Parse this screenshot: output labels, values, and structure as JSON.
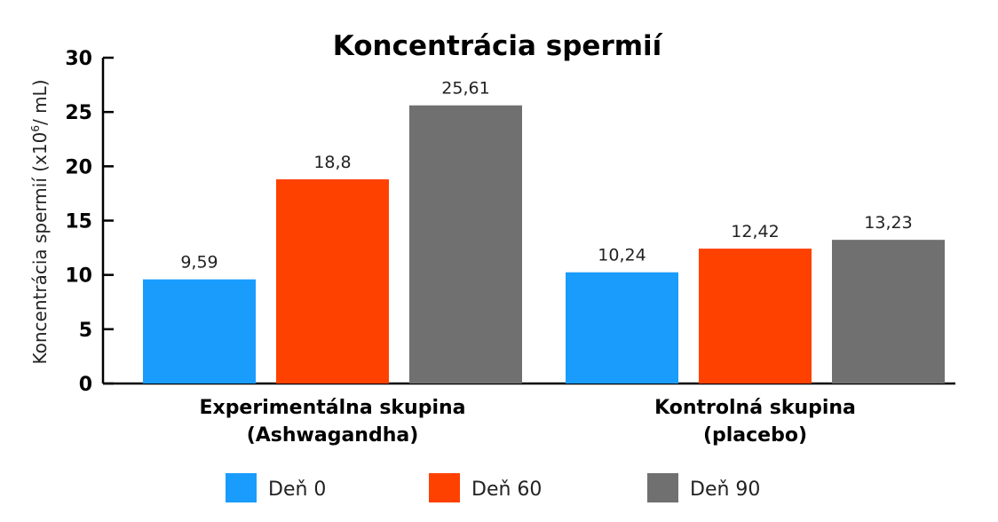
{
  "chart_data": {
    "type": "bar",
    "title": "Koncentrácia spermií",
    "ylabel_main": "Koncentrácia spermií (x10",
    "ylabel_sup": "6",
    "ylabel_end": "/ mL)",
    "xlabel": "",
    "ylim": [
      0,
      30
    ],
    "yticks": [
      "0",
      "5",
      "10",
      "15",
      "20",
      "25",
      "30"
    ],
    "grid": false,
    "legend_position": "bottom",
    "categories": [
      [
        "Experimentálna skupina",
        "(Ashwagandha)"
      ],
      [
        "Kontrolná skupina",
        "(placebo)"
      ]
    ],
    "series": [
      {
        "name": "Deň 0",
        "color": "#1a9cfd",
        "values": [
          9.59,
          10.24
        ],
        "labels": [
          "9,59",
          "10,24"
        ]
      },
      {
        "name": "Deň 60",
        "color": "#ff4100",
        "values": [
          18.8,
          12.42
        ],
        "labels": [
          "18,8",
          "12,42"
        ]
      },
      {
        "name": "Deň 90",
        "color": "#707070",
        "values": [
          25.61,
          13.23
        ],
        "labels": [
          "25,61",
          "13,23"
        ]
      }
    ]
  }
}
